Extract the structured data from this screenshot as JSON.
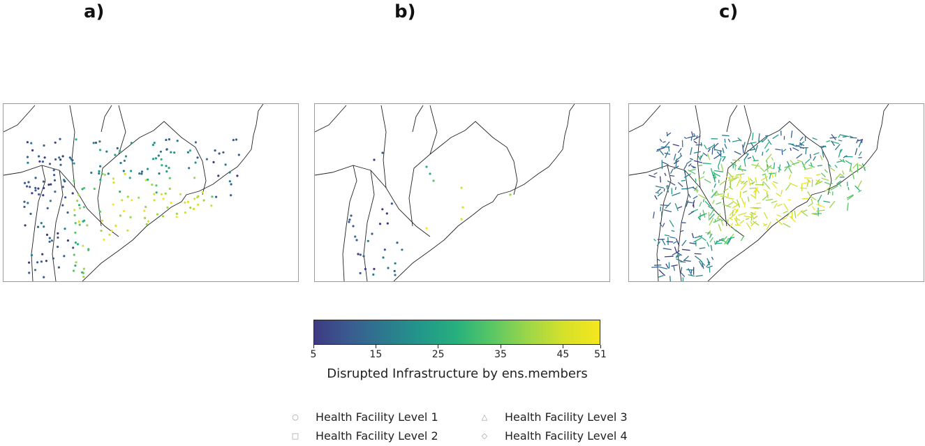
{
  "panels": [
    {
      "label": "a)"
    },
    {
      "label": "b)"
    },
    {
      "label": "c)"
    }
  ],
  "colorbar": {
    "title": "Disrupted Infrastructure by ens.members",
    "ticks": [
      "5",
      "15",
      "25",
      "35",
      "45",
      "51"
    ],
    "range": [
      5,
      51
    ],
    "colormap": "viridis"
  },
  "legend": {
    "items": [
      {
        "label": "Health Facility Level 1",
        "icon": "circle-icon"
      },
      {
        "label": "Health Facility Level 2",
        "icon": "square-icon"
      },
      {
        "label": "Health Facility Level 3",
        "icon": "triangle-icon"
      },
      {
        "label": "Health Facility Level 4",
        "icon": "diamond-icon"
      }
    ]
  }
}
